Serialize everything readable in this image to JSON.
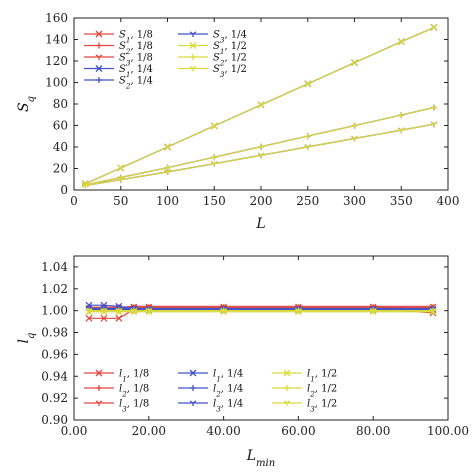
{
  "chart_data": [
    {
      "type": "line",
      "xlabel": "L",
      "ylabel": "S_q",
      "xlim": [
        0,
        400
      ],
      "ylim": [
        0,
        160
      ],
      "xticks": [
        0,
        50,
        100,
        150,
        200,
        250,
        300,
        350,
        400
      ],
      "yticks": [
        0,
        20,
        40,
        60,
        80,
        100,
        120,
        140,
        160
      ],
      "grid": false,
      "legend": "top-left",
      "series": [
        {
          "name": "S_1, 1/8",
          "symbol": "x",
          "color": "#e3473f",
          "x": [
            12,
            50,
            100,
            150,
            200,
            250,
            300,
            350,
            385
          ],
          "y": [
            5.8,
            20.5,
            40,
            59.6,
            79.2,
            98.8,
            118.4,
            138,
            151.3
          ]
        },
        {
          "name": "S_2, 1/8",
          "symbol": "+",
          "color": "#e3473f",
          "x": [
            12,
            50,
            100,
            150,
            200,
            250,
            300,
            350,
            385
          ],
          "y": [
            4.7,
            11.7,
            20.7,
            30.5,
            40.3,
            50.1,
            59.9,
            69.7,
            76.7
          ]
        },
        {
          "name": "S_3, 1/8",
          "symbol": "tri",
          "color": "#e3473f",
          "x": [
            12,
            50,
            100,
            150,
            200,
            250,
            300,
            350,
            385
          ],
          "y": [
            4.2,
            9.6,
            16.8,
            24.5,
            32.3,
            40.1,
            47.9,
            55.7,
            61.2
          ]
        },
        {
          "name": "S_1, 1/4",
          "symbol": "x",
          "color": "#4353c8",
          "x": [
            12,
            50,
            100,
            150,
            200,
            250,
            300,
            350,
            385
          ],
          "y": [
            5.8,
            20.5,
            40,
            59.6,
            79.2,
            98.8,
            118.4,
            138,
            151.3
          ]
        },
        {
          "name": "S_2, 1/4",
          "symbol": "+",
          "color": "#4353c8",
          "x": [
            12,
            50,
            100,
            150,
            200,
            250,
            300,
            350,
            385
          ],
          "y": [
            4.7,
            11.7,
            20.7,
            30.5,
            40.3,
            50.1,
            59.9,
            69.7,
            76.7
          ]
        },
        {
          "name": "S_3, 1/4",
          "symbol": "tri",
          "color": "#4353c8",
          "x": [
            12,
            50,
            100,
            150,
            200,
            250,
            300,
            350,
            385
          ],
          "y": [
            4.2,
            9.6,
            16.8,
            24.5,
            32.3,
            40.1,
            47.9,
            55.7,
            61.2
          ]
        },
        {
          "name": "S_1, 1/2",
          "symbol": "x",
          "color": "#d9d93a",
          "x": [
            12,
            50,
            100,
            150,
            200,
            250,
            300,
            350,
            385
          ],
          "y": [
            5.8,
            20.5,
            40,
            59.6,
            79.2,
            98.8,
            118.4,
            138,
            151.3
          ]
        },
        {
          "name": "S_2, 1/2",
          "symbol": "+",
          "color": "#d9d93a",
          "x": [
            12,
            50,
            100,
            150,
            200,
            250,
            300,
            350,
            385
          ],
          "y": [
            4.7,
            11.7,
            20.7,
            30.5,
            40.3,
            50.1,
            59.9,
            69.7,
            76.7
          ]
        },
        {
          "name": "S_3, 1/2",
          "symbol": "tri",
          "color": "#d9d93a",
          "x": [
            12,
            50,
            100,
            150,
            200,
            250,
            300,
            350,
            385
          ],
          "y": [
            4.2,
            9.6,
            16.8,
            24.5,
            32.3,
            40.1,
            47.9,
            55.7,
            61.2
          ]
        }
      ]
    },
    {
      "type": "line",
      "xlabel": "L_min",
      "ylabel": "l_q",
      "xlim": [
        0,
        100
      ],
      "ylim": [
        0.9,
        1.05
      ],
      "xticks": [
        0,
        20,
        40,
        60,
        80,
        100
      ],
      "yticks": [
        0.9,
        0.92,
        0.94,
        0.96,
        0.98,
        1.0,
        1.02,
        1.04
      ],
      "grid": false,
      "legend": "bottom",
      "series": [
        {
          "name": "l_1, 1/8",
          "symbol": "x",
          "color": "#e3473f",
          "x": [
            4,
            8,
            12,
            16,
            20,
            40,
            60,
            80,
            96
          ],
          "y": [
            0.993,
            0.993,
            0.993,
            1.001,
            1.002,
            1.002,
            1.002,
            1.002,
            0.998
          ]
        },
        {
          "name": "l_2, 1/8",
          "symbol": "+",
          "color": "#e3473f",
          "x": [
            4,
            8,
            12,
            16,
            20,
            40,
            60,
            80,
            96
          ],
          "y": [
            1.003,
            1.003,
            1.003,
            1.003,
            1.003,
            1.003,
            1.003,
            1.003,
            1.003
          ]
        },
        {
          "name": "l_3, 1/8",
          "symbol": "tri",
          "color": "#e3473f",
          "x": [
            4,
            8,
            12,
            16,
            20,
            40,
            60,
            80,
            96
          ],
          "y": [
            1.003,
            1.003,
            1.003,
            1.004,
            1.004,
            1.004,
            1.004,
            1.004,
            1.004
          ]
        },
        {
          "name": "l_1, 1/4",
          "symbol": "x",
          "color": "#4353c8",
          "x": [
            4,
            8,
            12,
            16,
            20,
            40,
            60,
            80,
            96
          ],
          "y": [
            1.005,
            1.005,
            1.004,
            1.002,
            1.001,
            1.001,
            1.001,
            1.001,
            1.001
          ]
        },
        {
          "name": "l_2, 1/4",
          "symbol": "+",
          "color": "#4353c8",
          "x": [
            4,
            8,
            12,
            16,
            20,
            40,
            60,
            80,
            96
          ],
          "y": [
            1.001,
            1.001,
            1.001,
            1.001,
            1.001,
            1.001,
            1.001,
            1.001,
            1.001
          ]
        },
        {
          "name": "l_3, 1/4",
          "symbol": "tri",
          "color": "#4353c8",
          "x": [
            4,
            8,
            12,
            16,
            20,
            40,
            60,
            80,
            96
          ],
          "y": [
            1.002,
            1.002,
            1.002,
            1.002,
            1.002,
            1.002,
            1.002,
            1.002,
            1.002
          ]
        },
        {
          "name": "l_1, 1/2",
          "symbol": "x",
          "color": "#d9d93a",
          "x": [
            4,
            8,
            12,
            16,
            20,
            40,
            60,
            80,
            96
          ],
          "y": [
            0.999,
            0.999,
            0.999,
            0.999,
            0.999,
            0.999,
            0.999,
            0.999,
            0.999
          ]
        },
        {
          "name": "l_2, 1/2",
          "symbol": "+",
          "color": "#d9d93a",
          "x": [
            4,
            8,
            12,
            16,
            20,
            40,
            60,
            80,
            96
          ],
          "y": [
            1.0,
            1.0,
            1.0,
            1.0,
            1.0,
            1.0,
            1.0,
            1.0,
            1.0
          ]
        },
        {
          "name": "l_3, 1/2",
          "symbol": "tri",
          "color": "#d9d93a",
          "x": [
            4,
            8,
            12,
            16,
            20,
            40,
            60,
            80,
            96
          ],
          "y": [
            1.0,
            1.0,
            1.0,
            1.0,
            1.0,
            1.0,
            1.0,
            1.0,
            1.0
          ]
        }
      ]
    }
  ]
}
